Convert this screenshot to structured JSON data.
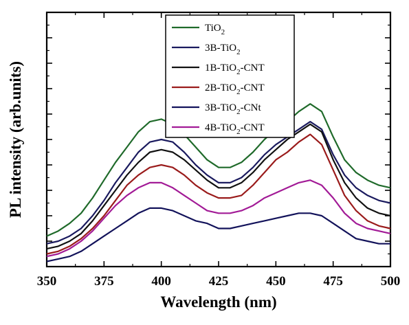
{
  "chart_data": {
    "type": "line",
    "title": "",
    "xlabel": "Wavelength (nm)",
    "ylabel": "PL intensity (arb.units)",
    "xlim": [
      350,
      500
    ],
    "ylim": [
      0,
      100
    ],
    "x_ticks": [
      "350",
      "375",
      "400",
      "425",
      "450",
      "475",
      "500"
    ],
    "y_ticks_labeled": false,
    "grid": false,
    "legend_position": "top-center",
    "series": [
      {
        "name": "TiO2",
        "name_main": "TiO",
        "name_sub": "2",
        "name_tail": "",
        "color": "#1f6a2a",
        "x": [
          350,
          355,
          360,
          365,
          370,
          375,
          380,
          385,
          390,
          395,
          400,
          405,
          410,
          415,
          420,
          425,
          430,
          435,
          440,
          445,
          450,
          455,
          460,
          465,
          470,
          475,
          480,
          485,
          490,
          495,
          500
        ],
        "y": [
          12,
          14,
          17,
          21,
          27,
          34,
          41,
          47,
          53,
          57,
          58,
          56,
          52,
          47,
          42,
          39,
          39,
          41,
          45,
          50,
          54,
          57,
          61,
          64,
          61,
          51,
          42,
          37,
          34,
          32,
          31
        ]
      },
      {
        "name": "3B-TiO2",
        "name_main": "3B-TiO",
        "name_sub": "2",
        "name_tail": "",
        "color": "#1a1a5e",
        "x": [
          350,
          355,
          360,
          365,
          370,
          375,
          380,
          385,
          390,
          395,
          400,
          405,
          410,
          415,
          420,
          425,
          430,
          435,
          440,
          445,
          450,
          455,
          460,
          465,
          470,
          475,
          480,
          485,
          490,
          495,
          500
        ],
        "y": [
          9,
          10,
          12,
          15,
          20,
          26,
          33,
          39,
          45,
          49,
          50,
          49,
          45,
          40,
          36,
          33,
          33,
          35,
          39,
          44,
          48,
          51,
          54,
          57,
          54,
          44,
          36,
          31,
          28,
          26,
          25
        ]
      },
      {
        "name": "1B-TiO2-CNT",
        "name_main": "1B-TiO",
        "name_sub": "2",
        "name_tail": "-CNT",
        "color": "#111111",
        "x": [
          350,
          355,
          360,
          365,
          370,
          375,
          380,
          385,
          390,
          395,
          400,
          405,
          410,
          415,
          420,
          425,
          430,
          435,
          440,
          445,
          450,
          455,
          460,
          465,
          470,
          475,
          480,
          485,
          490,
          495,
          500
        ],
        "y": [
          7,
          8,
          10,
          13,
          18,
          24,
          30,
          36,
          41,
          45,
          46,
          45,
          42,
          38,
          34,
          31,
          31,
          33,
          37,
          42,
          46,
          50,
          53,
          56,
          53,
          42,
          33,
          27,
          23,
          21,
          20
        ]
      },
      {
        "name": "2B-TiO2-CNT",
        "name_main": "2B-TiO",
        "name_sub": "2",
        "name_tail": "-CNT",
        "color": "#9a1b1b",
        "x": [
          350,
          355,
          360,
          365,
          370,
          375,
          380,
          385,
          390,
          395,
          400,
          405,
          410,
          415,
          420,
          425,
          430,
          435,
          440,
          445,
          450,
          455,
          460,
          465,
          470,
          475,
          480,
          485,
          490,
          495,
          500
        ],
        "y": [
          5,
          6,
          8,
          11,
          15,
          20,
          26,
          32,
          36,
          39,
          40,
          39,
          36,
          32,
          29,
          27,
          27,
          28,
          32,
          37,
          42,
          45,
          49,
          52,
          48,
          38,
          28,
          22,
          18,
          16,
          15
        ]
      },
      {
        "name": "3B-TiO2-CNt",
        "name_main": "3B-TiO",
        "name_sub": "2",
        "name_tail": "-CNt",
        "color": "#12125a",
        "x": [
          350,
          355,
          360,
          365,
          370,
          375,
          380,
          385,
          390,
          395,
          400,
          405,
          410,
          415,
          420,
          425,
          430,
          435,
          440,
          445,
          450,
          455,
          460,
          465,
          470,
          475,
          480,
          485,
          490,
          495,
          500
        ],
        "y": [
          2,
          3,
          4,
          6,
          9,
          12,
          15,
          18,
          21,
          23,
          23,
          22,
          20,
          18,
          17,
          15,
          15,
          16,
          17,
          18,
          19,
          20,
          21,
          21,
          20,
          17,
          14,
          11,
          10,
          9,
          9
        ]
      },
      {
        "name": "4B-TiO2-CNT",
        "name_main": "4B-TiO",
        "name_sub": "2",
        "name_tail": "-CNT",
        "color": "#a21a96",
        "x": [
          350,
          355,
          360,
          365,
          370,
          375,
          380,
          385,
          390,
          395,
          400,
          405,
          410,
          415,
          420,
          425,
          430,
          435,
          440,
          445,
          450,
          455,
          460,
          465,
          470,
          475,
          480,
          485,
          490,
          495,
          500
        ],
        "y": [
          4,
          5,
          7,
          10,
          14,
          19,
          24,
          28,
          31,
          33,
          33,
          31,
          28,
          25,
          22,
          21,
          21,
          22,
          24,
          27,
          29,
          31,
          33,
          34,
          32,
          27,
          21,
          17,
          15,
          14,
          13
        ]
      }
    ]
  }
}
